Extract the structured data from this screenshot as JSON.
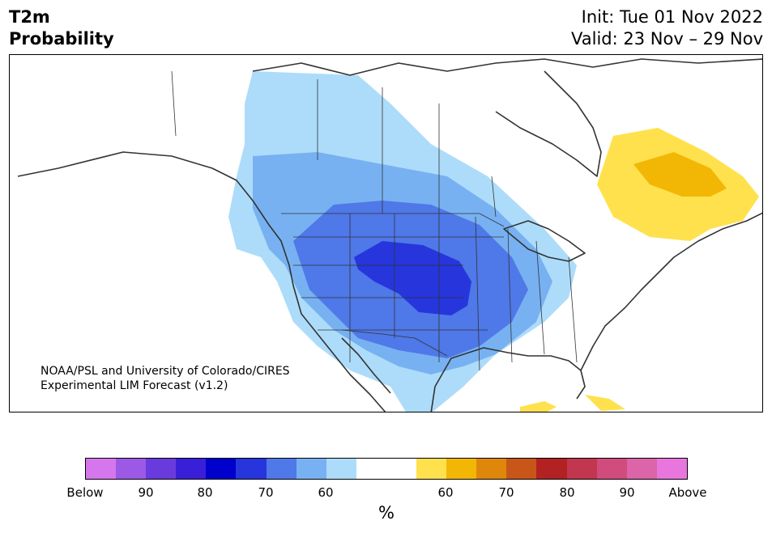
{
  "title": {
    "line1": "T2m",
    "line2": "Probability"
  },
  "validity": {
    "init": "Init: Tue 01 Nov 2022",
    "valid": "Valid: 23 Nov – 29 Nov"
  },
  "credit": {
    "line1": "NOAA/PSL and University of Colorado/CIRES",
    "line2": "Experimental LIM Forecast (v1.2)"
  },
  "legend": {
    "unit": "%",
    "colors": [
      "#d676ec",
      "#9b59e6",
      "#6a3bdc",
      "#3a1fd8",
      "#0000cc",
      "#2636dc",
      "#4f78e8",
      "#77b1f2",
      "#addcfa",
      "#ffffff",
      "#ffffff",
      "#ffe14d",
      "#f2b705",
      "#df870b",
      "#c85619",
      "#b22222",
      "#c2364f",
      "#d04c7c",
      "#dc64a8",
      "#e876dc"
    ],
    "ticks": [
      "Below",
      "90",
      "80",
      "70",
      "60",
      "60",
      "70",
      "80",
      "90",
      "Above"
    ]
  },
  "map_colors": {
    "c60cold": "#addcfa",
    "c70cold": "#77b1f2",
    "c80cold": "#4f78e8",
    "c90cold": "#2636dc",
    "c60warm": "#ffe14d",
    "c70warm": "#f2b705",
    "coast": "#333333"
  }
}
